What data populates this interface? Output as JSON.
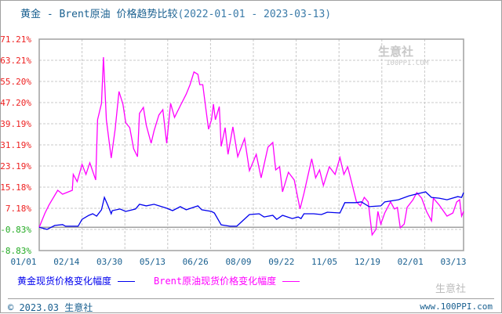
{
  "title": "黄金 - Brent原油 价格趋势比较",
  "date_range": "(2022-01-01 - 2023-03-13)",
  "watermark": {
    "brand": "生意社",
    "url": "100PPI.COM"
  },
  "legend": {
    "gold": "黄金现货价格变化幅度",
    "brent": "Brent原油现货价格变化幅度"
  },
  "footer": {
    "copyright": "© 2023.03 生意社",
    "site": "www.100PPI.com",
    "social_mark": "生意社"
  },
  "colors": {
    "gold": "#0000ee",
    "brent": "#ff00ff",
    "pos_label": "#ee2222",
    "neg_label": "#22aa22"
  },
  "chart_data": {
    "type": "line",
    "title": "黄金 - Brent原油 价格趋势比较",
    "x_unit": "days since 2022-01-01",
    "xlim": [
      0,
      436
    ],
    "ylim": [
      -8.83,
      71.21
    ],
    "ylabel": "%",
    "y_ticks": [
      "71.21%",
      "63.21%",
      "55.20%",
      "47.20%",
      "39.19%",
      "31.19%",
      "23.19%",
      "15.18%",
      "7.18%",
      "-0.83%",
      "-8.83%"
    ],
    "y_tick_values": [
      71.21,
      63.21,
      55.2,
      47.2,
      39.19,
      31.19,
      23.19,
      15.18,
      7.18,
      -0.83,
      -8.83
    ],
    "x_ticks": [
      "01/01",
      "02/14",
      "03/30",
      "05/13",
      "06/26",
      "08/09",
      "09/22",
      "11/05",
      "12/19",
      "02/01",
      "03/13"
    ],
    "x_tick_values": [
      0,
      44,
      88,
      132,
      176,
      220,
      264,
      308,
      352,
      396,
      436
    ],
    "grid": true,
    "legend_position": "bottom",
    "series": [
      {
        "name": "黄金现货价格变化幅度",
        "color": "#0000ee",
        "points": [
          [
            0,
            0
          ],
          [
            8,
            -0.8
          ],
          [
            16,
            0.7
          ],
          [
            24,
            1
          ],
          [
            27,
            0.4
          ],
          [
            40,
            0.4
          ],
          [
            44,
            3
          ],
          [
            51,
            4.5
          ],
          [
            55,
            5.1
          ],
          [
            59,
            4.2
          ],
          [
            64,
            6.6
          ],
          [
            67,
            11.3
          ],
          [
            70,
            8.7
          ],
          [
            74,
            5.1
          ],
          [
            75,
            6.3
          ],
          [
            83,
            6.9
          ],
          [
            89,
            6
          ],
          [
            99,
            6.9
          ],
          [
            103,
            8.7
          ],
          [
            110,
            8.1
          ],
          [
            118,
            8.7
          ],
          [
            131,
            7.2
          ],
          [
            137,
            6.3
          ],
          [
            145,
            7.8
          ],
          [
            151,
            6.6
          ],
          [
            163,
            8.1
          ],
          [
            167,
            6.6
          ],
          [
            177,
            6
          ],
          [
            180,
            5.4
          ],
          [
            187,
            0.9
          ],
          [
            196,
            0.4
          ],
          [
            203,
            0.4
          ],
          [
            208,
            2.1
          ],
          [
            216,
            4.8
          ],
          [
            226,
            5.1
          ],
          [
            231,
            3.9
          ],
          [
            240,
            4.5
          ],
          [
            244,
            3
          ],
          [
            250,
            4.5
          ],
          [
            260,
            3.3
          ],
          [
            266,
            3.9
          ],
          [
            269,
            3.3
          ],
          [
            272,
            5.1
          ],
          [
            282,
            5.1
          ],
          [
            290,
            4.8
          ],
          [
            296,
            5.7
          ],
          [
            309,
            5.4
          ],
          [
            314,
            9.3
          ],
          [
            325,
            9.3
          ],
          [
            331,
            9.6
          ],
          [
            339,
            7.8
          ],
          [
            351,
            8.1
          ],
          [
            355,
            9.6
          ],
          [
            369,
            10.4
          ],
          [
            380,
            11.9
          ],
          [
            397,
            13.4
          ],
          [
            403,
            11.3
          ],
          [
            411,
            11
          ],
          [
            419,
            10.4
          ],
          [
            430,
            11.6
          ],
          [
            434,
            11.3
          ],
          [
            436,
            13.1
          ]
        ]
      },
      {
        "name": "Brent原油现货价格变化幅度",
        "color": "#ff00ff",
        "points": [
          [
            0,
            0
          ],
          [
            6,
            5.4
          ],
          [
            10,
            8.4
          ],
          [
            19,
            14
          ],
          [
            24,
            12.5
          ],
          [
            34,
            14
          ],
          [
            35,
            20
          ],
          [
            39,
            17.3
          ],
          [
            44,
            23.8
          ],
          [
            48,
            20
          ],
          [
            52,
            24.4
          ],
          [
            58,
            17.9
          ],
          [
            60,
            40.7
          ],
          [
            64,
            46.9
          ],
          [
            66,
            64.4
          ],
          [
            69,
            40.7
          ],
          [
            74,
            26.2
          ],
          [
            78,
            37.1
          ],
          [
            82,
            51.4
          ],
          [
            86,
            46.6
          ],
          [
            89,
            39.5
          ],
          [
            93,
            37.7
          ],
          [
            97,
            29.7
          ],
          [
            101,
            26.7
          ],
          [
            103,
            43.1
          ],
          [
            107,
            45.4
          ],
          [
            110,
            38.6
          ],
          [
            115,
            31.8
          ],
          [
            118,
            36.5
          ],
          [
            123,
            42.5
          ],
          [
            127,
            44.5
          ],
          [
            131,
            31.8
          ],
          [
            135,
            46.9
          ],
          [
            139,
            41.6
          ],
          [
            145,
            46
          ],
          [
            151,
            50.4
          ],
          [
            155,
            54
          ],
          [
            159,
            58.8
          ],
          [
            163,
            57.9
          ],
          [
            165,
            54
          ],
          [
            168,
            54
          ],
          [
            171,
            45.4
          ],
          [
            174,
            37.1
          ],
          [
            177,
            40.7
          ],
          [
            179,
            46.6
          ],
          [
            181,
            40.7
          ],
          [
            185,
            45.7
          ],
          [
            187,
            30.6
          ],
          [
            191,
            37.7
          ],
          [
            194,
            27.6
          ],
          [
            199,
            38
          ],
          [
            204,
            26.7
          ],
          [
            211,
            33.6
          ],
          [
            216,
            21.4
          ],
          [
            223,
            27.6
          ],
          [
            228,
            18.7
          ],
          [
            235,
            30.3
          ],
          [
            240,
            32.1
          ],
          [
            243,
            21.7
          ],
          [
            247,
            22.9
          ],
          [
            250,
            13.4
          ],
          [
            256,
            20.8
          ],
          [
            262,
            17.9
          ],
          [
            268,
            6.9
          ],
          [
            272,
            12.8
          ],
          [
            280,
            25.9
          ],
          [
            284,
            18.7
          ],
          [
            288,
            21.7
          ],
          [
            292,
            15.8
          ],
          [
            298,
            22.9
          ],
          [
            304,
            20
          ],
          [
            309,
            26.4
          ],
          [
            313,
            20
          ],
          [
            317,
            22.9
          ],
          [
            322,
            15.5
          ],
          [
            326,
            9.6
          ],
          [
            330,
            8.1
          ],
          [
            334,
            11.3
          ],
          [
            338,
            9.6
          ],
          [
            342,
            -2.9
          ],
          [
            346,
            -0.8
          ],
          [
            348,
            6
          ],
          [
            351,
            1.2
          ],
          [
            355,
            5.4
          ],
          [
            361,
            9.6
          ],
          [
            365,
            6.9
          ],
          [
            368,
            7.5
          ],
          [
            371,
            -0.2
          ],
          [
            375,
            1.2
          ],
          [
            378,
            7.5
          ],
          [
            384,
            10.4
          ],
          [
            388,
            13.1
          ],
          [
            393,
            11
          ],
          [
            398,
            6
          ],
          [
            403,
            2.4
          ],
          [
            405,
            11
          ],
          [
            411,
            8.4
          ],
          [
            419,
            4.2
          ],
          [
            425,
            5.4
          ],
          [
            429,
            9.6
          ],
          [
            432,
            10.4
          ],
          [
            434,
            4.2
          ],
          [
            436,
            6
          ]
        ]
      }
    ]
  }
}
